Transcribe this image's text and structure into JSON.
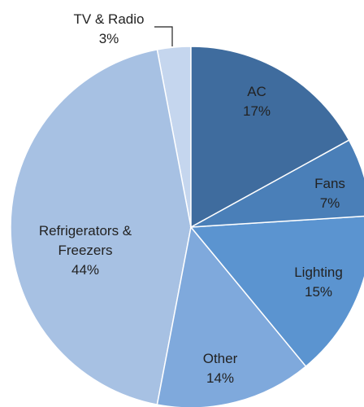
{
  "chart_data": {
    "type": "pie",
    "categories": [
      "AC",
      "Fans",
      "Lighting",
      "Other",
      "Refrigerators & Freezers",
      "TV & Radio"
    ],
    "values": [
      17,
      7,
      15,
      14,
      44,
      3
    ],
    "value_labels": [
      "17%",
      "7%",
      "15%",
      "14%",
      "44%",
      "3%"
    ],
    "colors": [
      "#3f6c9e",
      "#4a7fb8",
      "#5b94d0",
      "#7fa9dc",
      "#a7c1e3",
      "#c5d6ee"
    ]
  }
}
